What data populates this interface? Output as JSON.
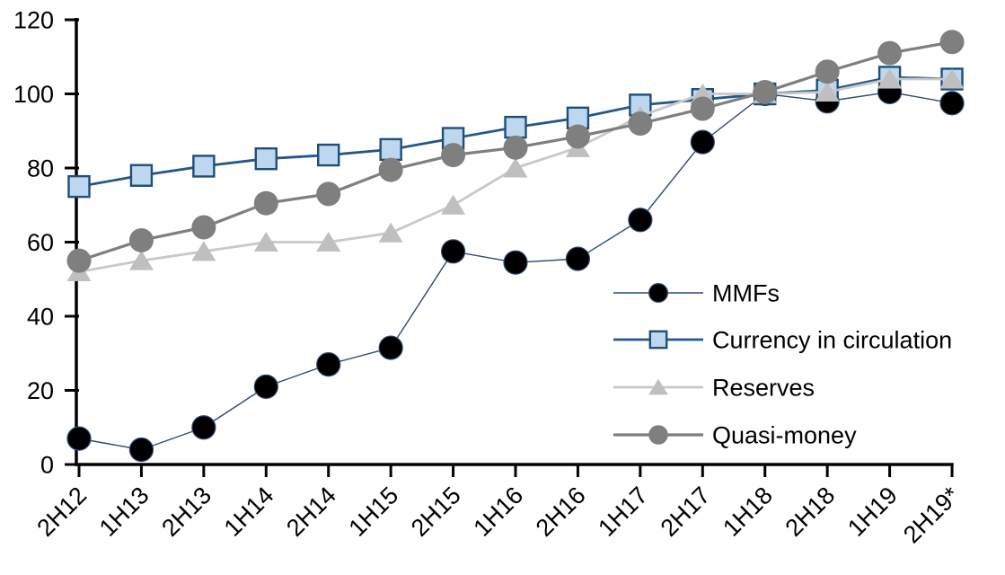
{
  "chart_data": {
    "type": "line",
    "title": "",
    "xlabel": "",
    "ylabel": "",
    "ylim": [
      0,
      120
    ],
    "yticks": [
      0,
      20,
      40,
      60,
      80,
      100,
      120
    ],
    "grid": false,
    "legend_position": "inside-right-lower",
    "categories": [
      "2H12",
      "1H13",
      "2H13",
      "1H14",
      "2H14",
      "1H15",
      "2H15",
      "1H16",
      "2H16",
      "1H17",
      "2H17",
      "1H18",
      "2H18",
      "1H19",
      "2H19*"
    ],
    "series": [
      {
        "name": "MMFs",
        "marker": "circle",
        "line_color": "#2F4A76",
        "marker_fill": "#000000",
        "marker_stroke": "#2F4A76",
        "values": [
          7,
          4,
          10,
          21,
          27,
          31.5,
          57.5,
          54.5,
          55.5,
          66,
          87,
          100,
          98,
          100.5,
          97.5
        ]
      },
      {
        "name": "Currency in circulation",
        "marker": "square",
        "line_color": "#24578A",
        "marker_fill": "#BDD7EE",
        "marker_stroke": "#1F4E79",
        "values": [
          75,
          78,
          80.5,
          82.5,
          83.5,
          85,
          88,
          91,
          93.5,
          97,
          98.5,
          100,
          101,
          104.5,
          104
        ]
      },
      {
        "name": "Reserves",
        "marker": "triangle",
        "line_color": "#C9C9C9",
        "marker_fill": "#BFBFBF",
        "marker_stroke": "none",
        "values": [
          52,
          55,
          57.5,
          60,
          60,
          62.5,
          70,
          80,
          85.5,
          94,
          100,
          100,
          100.5,
          104,
          104
        ]
      },
      {
        "name": "Quasi-money",
        "marker": "circle",
        "line_color": "#7F7F7F",
        "marker_fill": "#7F7F7F",
        "marker_stroke": "none",
        "values": [
          55,
          60.5,
          64,
          70.5,
          73,
          79.5,
          83.5,
          85.5,
          88.5,
          92,
          96,
          100.5,
          106,
          111,
          114
        ]
      }
    ],
    "axis_color": "#000000"
  }
}
